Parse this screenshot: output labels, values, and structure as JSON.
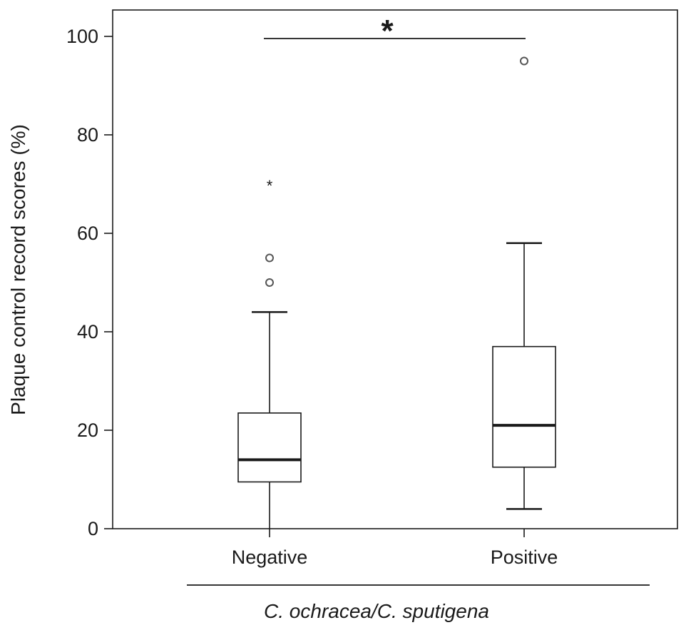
{
  "chart_data": {
    "type": "box",
    "ylabel": "Plaque control record scores (%)",
    "ylim": [
      0,
      105
    ],
    "yticks": [
      0,
      20,
      40,
      60,
      80,
      100
    ],
    "categories": [
      "Negative",
      "Positive"
    ],
    "group_label": "C. ochracea/C. sputigena",
    "significance": "*",
    "grid": false,
    "boxes": [
      {
        "category": "Negative",
        "min": 0,
        "q1": 9.5,
        "median": 14,
        "q3": 23.5,
        "max": 44,
        "outliers": [
          50,
          55
        ],
        "extremes": [
          70
        ]
      },
      {
        "category": "Positive",
        "min": 4,
        "q1": 12.5,
        "median": 21,
        "q3": 37,
        "max": 58,
        "outliers": [
          95
        ],
        "extremes": []
      }
    ],
    "colors": {
      "line": "#1a1a1a",
      "box_fill": "#ffffff",
      "outlier": "#555555"
    }
  }
}
